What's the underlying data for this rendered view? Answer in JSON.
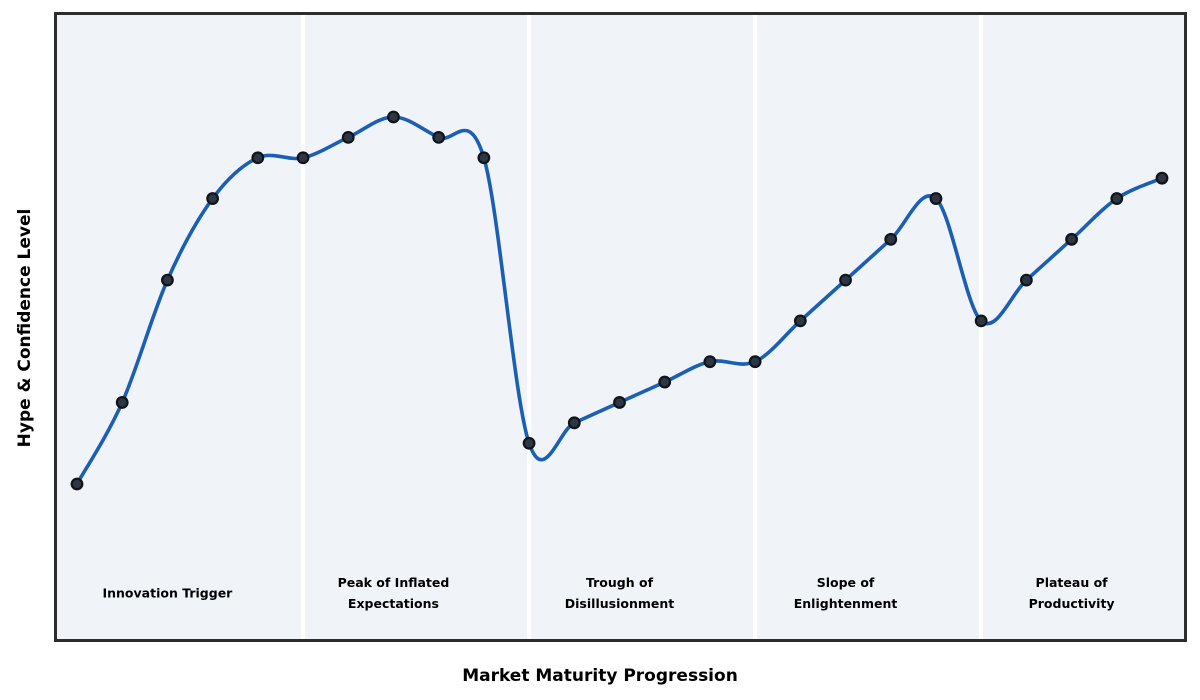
{
  "chart_data": {
    "type": "line",
    "title": "",
    "xlabel": "Market Maturity Progression",
    "ylabel": "Hype & Confidence Level",
    "x": [
      1,
      2,
      3,
      4,
      5,
      6,
      7,
      8,
      9,
      10,
      11,
      12,
      13,
      14,
      15,
      16,
      17,
      18,
      19,
      20,
      21,
      22,
      23,
      24,
      25
    ],
    "series": [
      {
        "name": "Hype & Confidence Level",
        "values": [
          5,
          25,
          55,
          75,
          85,
          85,
          90,
          95,
          90,
          85,
          15,
          20,
          25,
          30,
          35,
          35,
          45,
          55,
          65,
          75,
          45,
          55,
          65,
          75,
          80
        ]
      }
    ],
    "xlim": [
      0.56,
      25.49
    ],
    "ylim": [
      -33,
      120
    ],
    "grid": false,
    "legend": false,
    "markers": true,
    "smoothing": "spline",
    "x_tick_labels": [],
    "y_tick_labels": [],
    "phase_divider_x": [
      6,
      11,
      16,
      21
    ],
    "phases": [
      {
        "label": "Innovation Trigger",
        "label_x": 3
      },
      {
        "label": "Peak of Inflated\nExpectations",
        "label_x": 8
      },
      {
        "label": "Trough of\nDisillusionment",
        "label_x": 13
      },
      {
        "label": "Slope of\nEnlightenment",
        "label_x": 18
      },
      {
        "label": "Plateau of\nProductivity",
        "label_x": 23
      }
    ]
  },
  "colors": {
    "line": "#1a5fb4",
    "marker_fill": "#2d3744",
    "marker_edge": "#101418",
    "plot_background": "#f0f4f8",
    "page_background": "#ffffff",
    "plot_border": "#2d2d2d",
    "phase_divider": "#ffffff",
    "text": "#000000"
  }
}
